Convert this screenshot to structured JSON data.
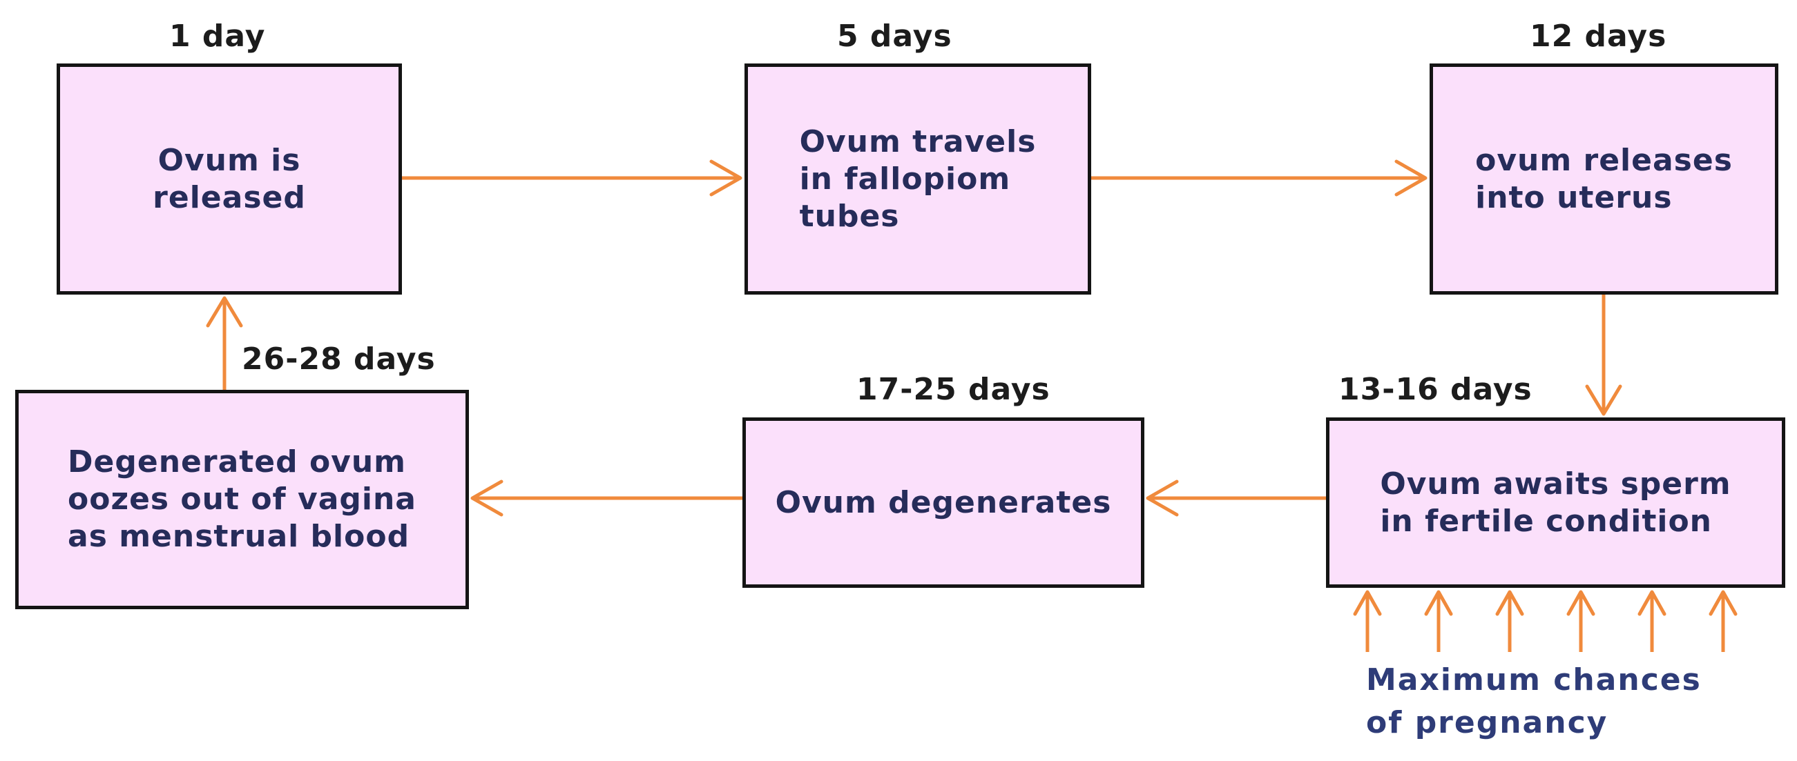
{
  "colors": {
    "box_fill": "#fbe0fb",
    "box_border": "#141414",
    "arrow": "#f08a3c",
    "box_text": "#262c5a",
    "label_text": "#1c1c1c",
    "note_text": "#2e3c78"
  },
  "stages": [
    {
      "day_label": "1 day",
      "text": "Ovum is\nreleased"
    },
    {
      "day_label": "5 days",
      "text": "Ovum travels\nin fallopiom\ntubes"
    },
    {
      "day_label": "12 days",
      "text": "ovum releases\ninto uterus"
    },
    {
      "day_label": "13-16 days",
      "text": "Ovum awaits sperm\nin fertile condition"
    },
    {
      "day_label": "17-25 days",
      "text": "Ovum degenerates"
    },
    {
      "day_label": "26-28 days",
      "text": "Degenerated  ovum\noozes out of vagina\nas menstrual blood"
    }
  ],
  "note": "Maximum chances\nof pregnancy"
}
